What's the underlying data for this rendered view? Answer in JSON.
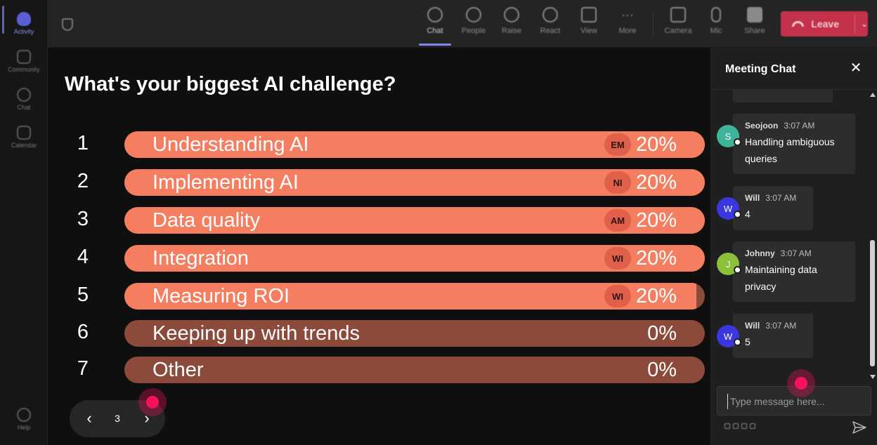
{
  "rail": {
    "items": [
      {
        "label": "Activity",
        "active": true
      },
      {
        "label": "Community"
      },
      {
        "label": "Chat"
      },
      {
        "label": "Calendar"
      }
    ],
    "help_label": "Help"
  },
  "toolbar": {
    "buttons": [
      {
        "label": "Chat",
        "icon": "chat-icon",
        "active": true
      },
      {
        "label": "People",
        "icon": "people-icon"
      },
      {
        "label": "Raise",
        "icon": "hand-icon"
      },
      {
        "label": "React",
        "icon": "smile-icon"
      },
      {
        "label": "View",
        "icon": "grid-icon"
      },
      {
        "label": "More",
        "icon": "more-icon"
      },
      {
        "label": "Camera",
        "icon": "camera-icon"
      },
      {
        "label": "Mic",
        "icon": "mic-icon"
      },
      {
        "label": "Share",
        "icon": "share-icon"
      }
    ],
    "leave_label": "Leave"
  },
  "poll": {
    "title": "What's your biggest AI challenge?",
    "options": [
      {
        "num": "1",
        "label": "Understanding AI",
        "pct_text": "20%",
        "fill": 1.0,
        "avatar": "EM"
      },
      {
        "num": "2",
        "label": "Implementing AI",
        "pct_text": "20%",
        "fill": 1.0,
        "avatar": "NI"
      },
      {
        "num": "3",
        "label": "Data quality",
        "pct_text": "20%",
        "fill": 1.0,
        "avatar": "AM"
      },
      {
        "num": "4",
        "label": "Integration",
        "pct_text": "20%",
        "fill": 1.0,
        "avatar": "WI"
      },
      {
        "num": "5",
        "label": "Measuring ROI",
        "pct_text": "20%",
        "fill": 0.985,
        "avatar": "WI"
      },
      {
        "num": "6",
        "label": "Keeping up with trends",
        "pct_text": "0%",
        "fill": 0,
        "avatar": ""
      },
      {
        "num": "7",
        "label": "Other",
        "pct_text": "0%",
        "fill": 0,
        "avatar": ""
      }
    ]
  },
  "pager": {
    "page": "3",
    "prev_icon": "chevron-left-icon",
    "next_icon": "chevron-right-icon"
  },
  "chat": {
    "title": "Meeting Chat",
    "close_icon": "close-icon",
    "messages": [
      {
        "name": "Seojoon",
        "time": "3:07 AM",
        "text": "Handling ambiguous queries",
        "initial": "S",
        "color": "#3fb39a"
      },
      {
        "name": "Will",
        "time": "3:07 AM",
        "text": "4",
        "initial": "W",
        "color": "#3b36e0"
      },
      {
        "name": "Johnny",
        "time": "3:07 AM",
        "text": "Maintaining data privacy",
        "initial": "J",
        "color": "#8cbf3a"
      },
      {
        "name": "Will",
        "time": "3:07 AM",
        "text": "5",
        "initial": "W",
        "color": "#3b36e0"
      }
    ],
    "compose_placeholder": "Type message here...",
    "send_icon": "send-icon"
  },
  "colors": {
    "bar_fill": "#f47e5f",
    "bar_track": "#8b4a3a",
    "leave": "#c4314b",
    "accent": "#7f85f5"
  }
}
